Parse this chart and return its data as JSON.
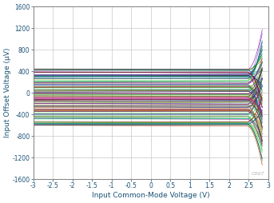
{
  "xlabel": "Input Common-Mode Voltage (V)",
  "ylabel": "Input Offset Voltage (µV)",
  "xlim": [
    -3,
    3
  ],
  "ylim": [
    -1600,
    1600
  ],
  "xticks": [
    -3,
    -2.5,
    -2,
    -1.5,
    -1,
    -0.5,
    0,
    0.5,
    1,
    1.5,
    2,
    2.5,
    3
  ],
  "yticks": [
    -1600,
    -1200,
    -800,
    -400,
    0,
    400,
    800,
    1200,
    1600
  ],
  "watermark": "C007",
  "num_traces": 90,
  "flat_range_end": 2.45,
  "x_start": -3.0,
  "swing_start": 2.45,
  "swing_end": 2.85,
  "seed": 42,
  "grid_color": "#c8c8c8",
  "bg_color": "#ffffff",
  "label_color": "#1a5276",
  "tick_color": "#1a5276",
  "watermark_color": "#b0b0b0",
  "spine_color": "#808080"
}
